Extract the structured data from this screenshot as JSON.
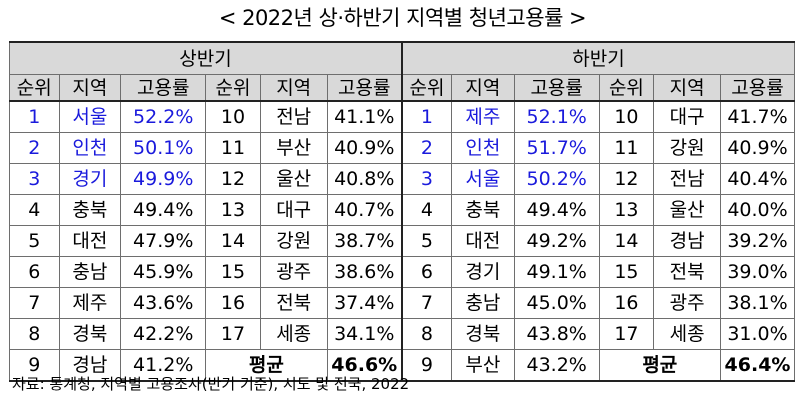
{
  "title": "< 2022년 상·하반기 지역별 청년고용률 >",
  "sections": [
    "상반기",
    "하반기"
  ],
  "headers": [
    "순위",
    "지역",
    "고용률"
  ],
  "rows": [
    [
      {
        "rank": "1",
        "region": "서울",
        "rate": "52.2%",
        "hl": true
      },
      {
        "rank": "10",
        "region": "전남",
        "rate": "41.1%"
      },
      {
        "rank": "1",
        "region": "제주",
        "rate": "52.1%",
        "hl": true
      },
      {
        "rank": "10",
        "region": "대구",
        "rate": "41.7%"
      }
    ],
    [
      {
        "rank": "2",
        "region": "인천",
        "rate": "50.1%",
        "hl": true
      },
      {
        "rank": "11",
        "region": "부산",
        "rate": "40.9%"
      },
      {
        "rank": "2",
        "region": "인천",
        "rate": "51.7%",
        "hl": true
      },
      {
        "rank": "11",
        "region": "강원",
        "rate": "40.9%"
      }
    ],
    [
      {
        "rank": "3",
        "region": "경기",
        "rate": "49.9%",
        "hl": true
      },
      {
        "rank": "12",
        "region": "울산",
        "rate": "40.8%"
      },
      {
        "rank": "3",
        "region": "서울",
        "rate": "50.2%",
        "hl": true
      },
      {
        "rank": "12",
        "region": "전남",
        "rate": "40.4%"
      }
    ],
    [
      {
        "rank": "4",
        "region": "충북",
        "rate": "49.4%"
      },
      {
        "rank": "13",
        "region": "대구",
        "rate": "40.7%"
      },
      {
        "rank": "4",
        "region": "충북",
        "rate": "49.4%"
      },
      {
        "rank": "13",
        "region": "울산",
        "rate": "40.0%"
      }
    ],
    [
      {
        "rank": "5",
        "region": "대전",
        "rate": "47.9%"
      },
      {
        "rank": "14",
        "region": "강원",
        "rate": "38.7%"
      },
      {
        "rank": "5",
        "region": "대전",
        "rate": "49.2%"
      },
      {
        "rank": "14",
        "region": "경남",
        "rate": "39.2%"
      }
    ],
    [
      {
        "rank": "6",
        "region": "충남",
        "rate": "45.9%"
      },
      {
        "rank": "15",
        "region": "광주",
        "rate": "38.6%"
      },
      {
        "rank": "6",
        "region": "경기",
        "rate": "49.1%"
      },
      {
        "rank": "15",
        "region": "전북",
        "rate": "39.0%"
      }
    ],
    [
      {
        "rank": "7",
        "region": "제주",
        "rate": "43.6%"
      },
      {
        "rank": "16",
        "region": "전북",
        "rate": "37.4%"
      },
      {
        "rank": "7",
        "region": "충남",
        "rate": "45.0%"
      },
      {
        "rank": "16",
        "region": "광주",
        "rate": "38.1%"
      }
    ],
    [
      {
        "rank": "8",
        "region": "경북",
        "rate": "42.2%"
      },
      {
        "rank": "17",
        "region": "세종",
        "rate": "34.1%"
      },
      {
        "rank": "8",
        "region": "경북",
        "rate": "43.8%"
      },
      {
        "rank": "17",
        "region": "세종",
        "rate": "31.0%"
      }
    ]
  ],
  "last_row": {
    "first": {
      "rank": "9",
      "region": "경남",
      "rate": "41.2%",
      "avg_label": "평균",
      "avg": "46.6%"
    },
    "second": {
      "rank": "9",
      "region": "부산",
      "rate": "43.2%",
      "avg_label": "평균",
      "avg": "46.4%"
    }
  },
  "source": "자료: 통계청, 지역별 고용조사(반기 기준), 시도 및 전국, 2022",
  "colors": {
    "highlight": "#1a1adc",
    "header_bg": "#d9d9d9"
  }
}
